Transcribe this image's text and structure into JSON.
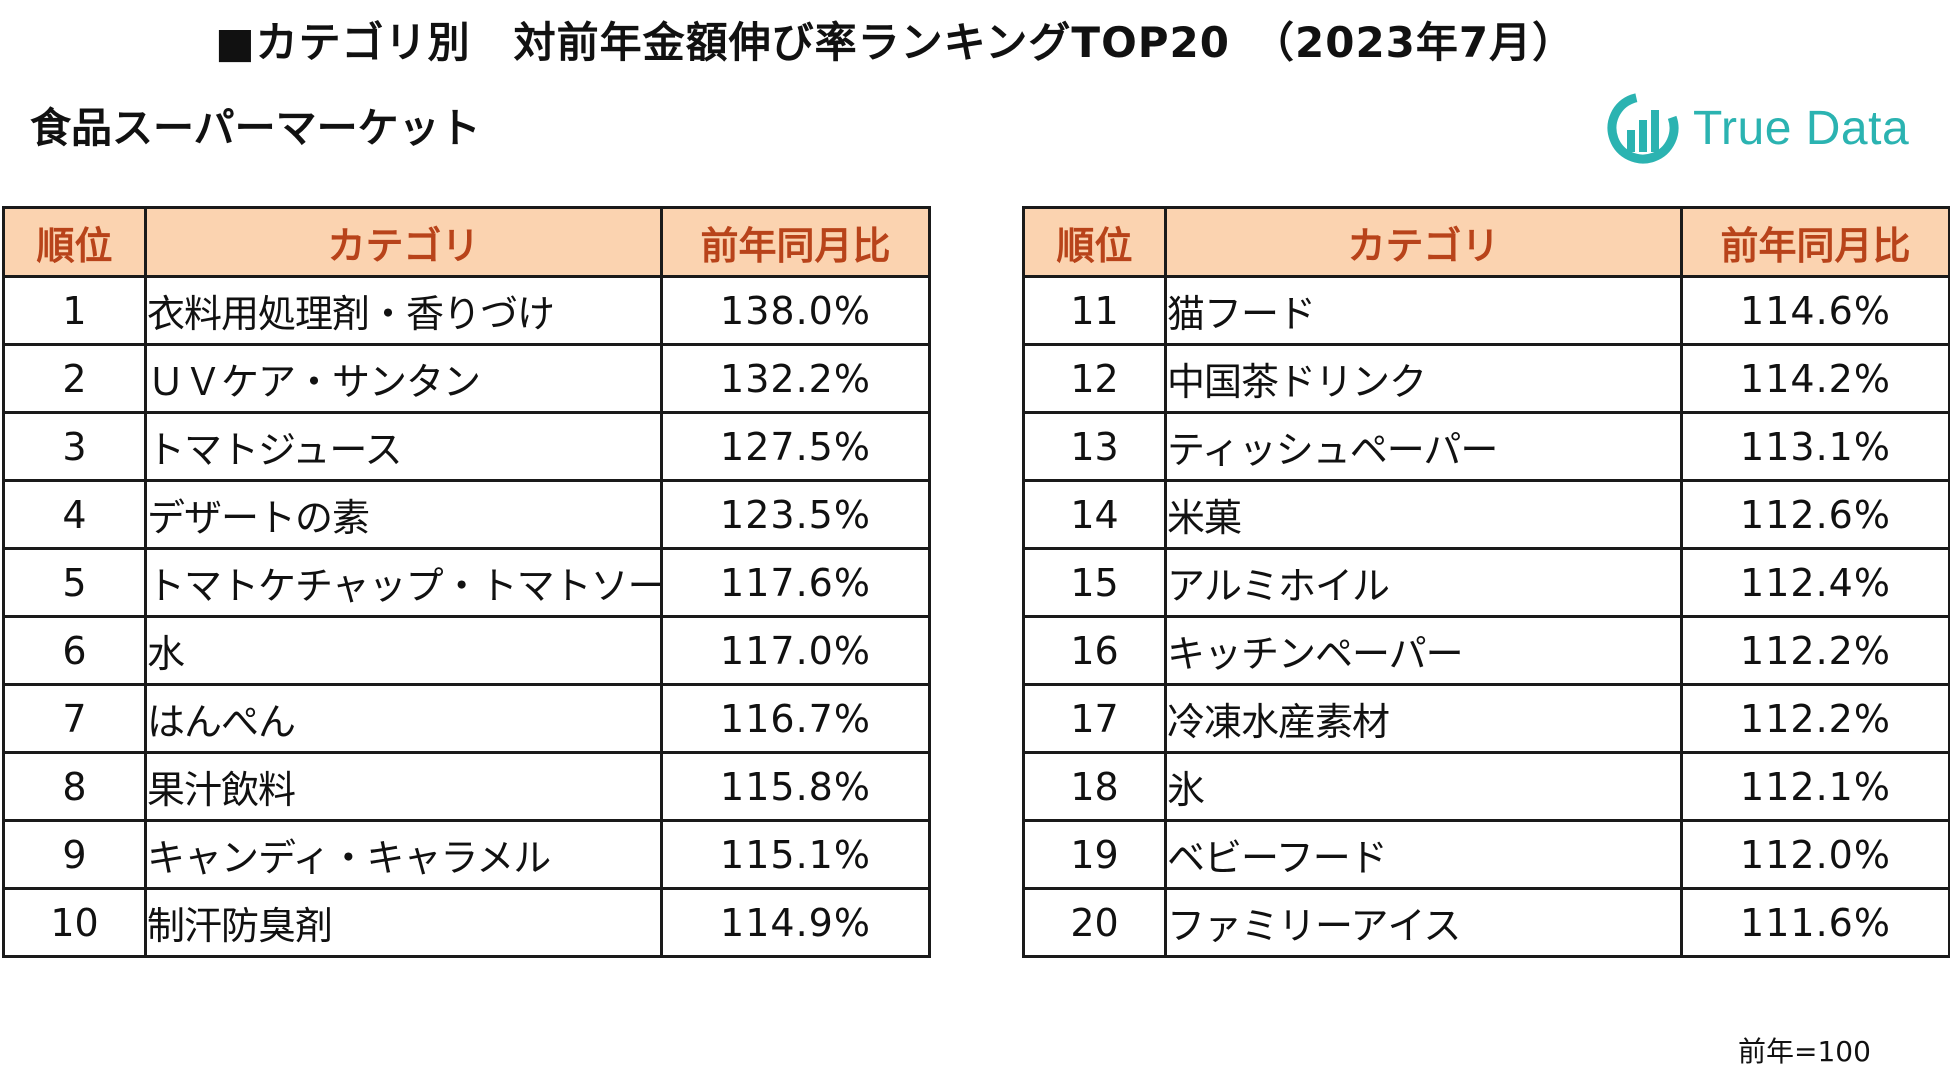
{
  "header": {
    "title": "■カテゴリ別　対前年金額伸び率ランキングTOP20　（2023年7月）",
    "subtitle": "食品スーパーマーケット"
  },
  "logo": {
    "text": "True Data",
    "icon": "truedata-logo-icon",
    "color": "#2bb3b1"
  },
  "columns": {
    "rank": "順位",
    "category": "カテゴリ",
    "ratio": "前年同月比"
  },
  "left_rows": [
    {
      "rank": "1",
      "category": "衣料用処理剤・香りづけ",
      "ratio": "138.0%"
    },
    {
      "rank": "2",
      "category": "ＵＶケア・サンタン",
      "ratio": "132.2%"
    },
    {
      "rank": "3",
      "category": "トマトジュース",
      "ratio": "127.5%"
    },
    {
      "rank": "4",
      "category": "デザートの素",
      "ratio": "123.5%"
    },
    {
      "rank": "5",
      "category": "トマトケチャップ・トマトソース",
      "ratio": "117.6%"
    },
    {
      "rank": "6",
      "category": "水",
      "ratio": "117.0%"
    },
    {
      "rank": "7",
      "category": "はんぺん",
      "ratio": "116.7%"
    },
    {
      "rank": "8",
      "category": "果汁飲料",
      "ratio": "115.8%"
    },
    {
      "rank": "9",
      "category": "キャンディ・キャラメル",
      "ratio": "115.1%"
    },
    {
      "rank": "10",
      "category": "制汗防臭剤",
      "ratio": "114.9%"
    }
  ],
  "right_rows": [
    {
      "rank": "11",
      "category": "猫フード",
      "ratio": "114.6%"
    },
    {
      "rank": "12",
      "category": "中国茶ドリンク",
      "ratio": "114.2%"
    },
    {
      "rank": "13",
      "category": "ティッシュペーパー",
      "ratio": "113.1%"
    },
    {
      "rank": "14",
      "category": "米菓",
      "ratio": "112.6%"
    },
    {
      "rank": "15",
      "category": "アルミホイル",
      "ratio": "112.4%"
    },
    {
      "rank": "16",
      "category": "キッチンペーパー",
      "ratio": "112.2%"
    },
    {
      "rank": "17",
      "category": "冷凍水産素材",
      "ratio": "112.2%"
    },
    {
      "rank": "18",
      "category": "氷",
      "ratio": "112.1%"
    },
    {
      "rank": "19",
      "category": "ベビーフード",
      "ratio": "112.0%"
    },
    {
      "rank": "20",
      "category": "ファミリーアイス",
      "ratio": "111.6%"
    }
  ],
  "footnote": "前年=100",
  "colors": {
    "header_bg": "#fbd3b0",
    "header_text": "#b8431a",
    "border": "#1a1a1a"
  }
}
